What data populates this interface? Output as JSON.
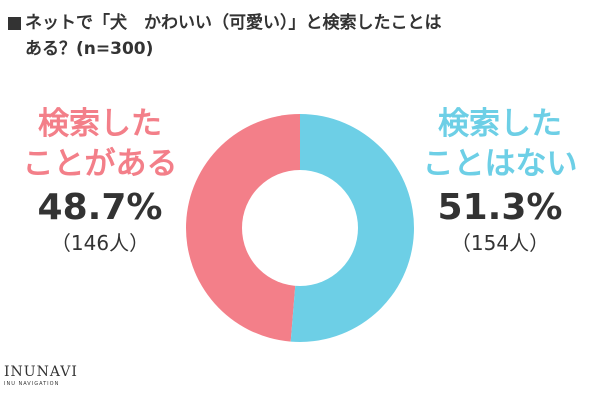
{
  "title": {
    "line1": "ネットで「犬　かわいい（可愛い）」と検索したことは",
    "line2": "ある？(n=300)"
  },
  "colors": {
    "searched": "#f37f89",
    "not_searched": "#6dcfe6",
    "text": "#333333"
  },
  "chart_data": {
    "type": "pie",
    "donut": true,
    "categories": [
      "検索したことがある",
      "検索したことはない"
    ],
    "values": [
      48.7,
      51.3
    ],
    "counts": [
      146,
      154
    ],
    "unit": "%",
    "labels": {
      "searched": {
        "line1": "検索した",
        "line2": "ことがある",
        "percent": "48.7%",
        "count": "（146人）"
      },
      "not_searched": {
        "line1": "検索した",
        "line2": "ことはない",
        "percent": "51.3%",
        "count": "（154人）"
      }
    }
  },
  "logo": {
    "main": "INUNAVI",
    "sub": "INU NAVIGATION"
  }
}
